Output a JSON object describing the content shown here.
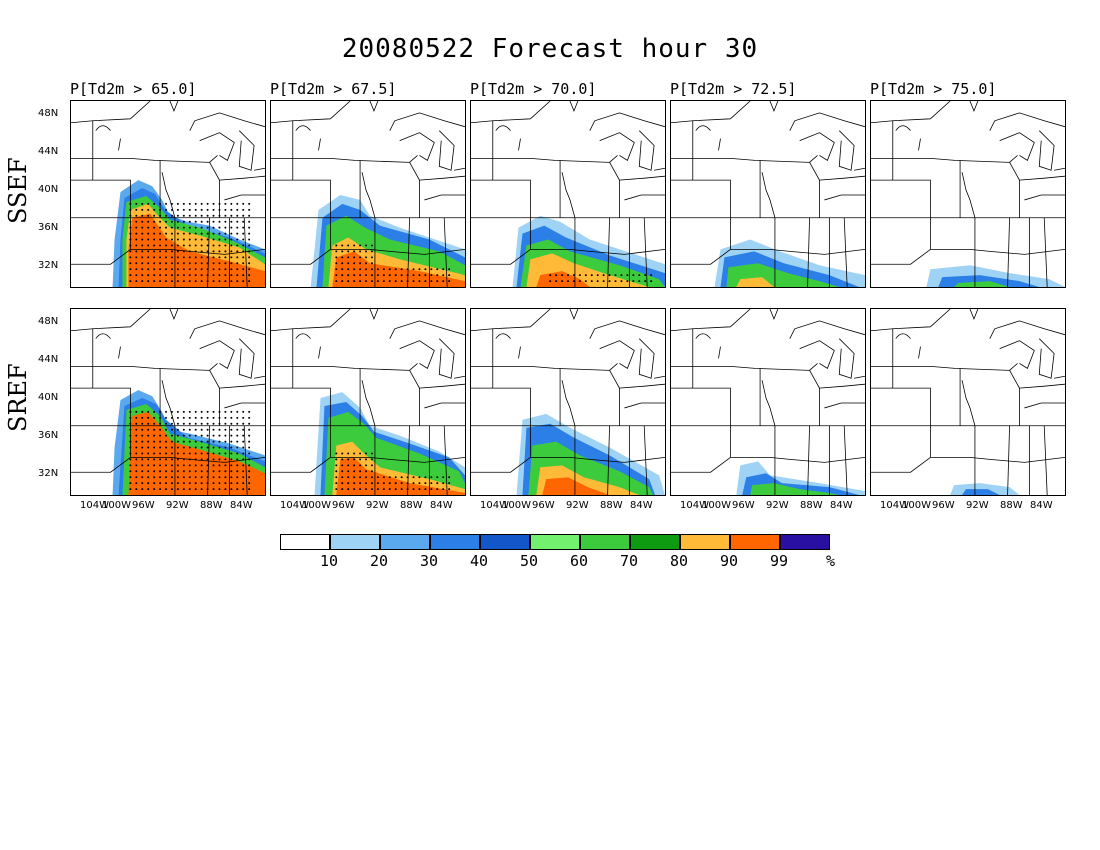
{
  "title": "20080522 Forecast hour 30",
  "columns": [
    {
      "label": "P[Td2m > 65.0]"
    },
    {
      "label": "P[Td2m > 67.5]"
    },
    {
      "label": "P[Td2m > 70.0]"
    },
    {
      "label": "P[Td2m > 72.5]"
    },
    {
      "label": "P[Td2m > 75.0]"
    }
  ],
  "rows": [
    {
      "label": "SSEF"
    },
    {
      "label": "SREF"
    }
  ],
  "lat_labels": [
    "48N",
    "44N",
    "40N",
    "36N",
    "32N"
  ],
  "lon_labels": [
    "104W",
    "100W",
    "96W",
    "92W",
    "88W",
    "84W"
  ],
  "colorbar": {
    "colors": [
      "#ffffff",
      "#9fd3f5",
      "#5aa9ef",
      "#2b7fe6",
      "#1356c9",
      "#74f06f",
      "#3ccb3c",
      "#0e9a11",
      "#ffba38",
      "#ff6600",
      "#2a0fa3"
    ],
    "labels": [
      "10",
      "20",
      "30",
      "40",
      "50",
      "60",
      "70",
      "80",
      "90",
      "99",
      "%"
    ]
  }
}
